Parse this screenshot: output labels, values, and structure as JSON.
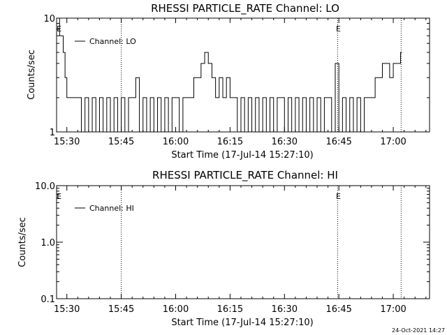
{
  "footer": {
    "timestamp": "24-Oct-2021 14:27"
  },
  "chart_data": [
    {
      "type": "line",
      "title": "RHESSI PARTICLE_RATE Channel: LO",
      "xlabel": "Start Time (17-Jul-14 15:27:10)",
      "ylabel": "Counts/sec",
      "yscale": "log",
      "ylim": [
        1,
        10
      ],
      "xlim": [
        "15:27:10",
        "17:10:00"
      ],
      "xticks": [
        "15:30",
        "15:45",
        "16:00",
        "16:15",
        "16:30",
        "16:45",
        "17:00"
      ],
      "yticks": [
        "1",
        "10"
      ],
      "legend": {
        "label": "Channel: LO",
        "position": "top-left"
      },
      "markers": [
        {
          "label": "E",
          "time": "16:44:40"
        },
        {
          "label": "E",
          "time": "15:27:40"
        }
      ],
      "vlines": [
        "15:45:00",
        "16:44:40",
        "17:02:10"
      ],
      "series": [
        {
          "name": "Channel: LO",
          "x": [
            "15:27:10",
            "15:28:00",
            "15:29:00",
            "15:29:30",
            "15:30:00",
            "15:31:00",
            "15:32:00",
            "15:33:00",
            "15:34:00",
            "15:35:00",
            "15:36:00",
            "15:37:00",
            "15:38:00",
            "15:39:00",
            "15:40:00",
            "15:41:00",
            "15:42:00",
            "15:43:00",
            "15:44:00",
            "15:45:00",
            "15:46:00",
            "15:47:00",
            "15:48:00",
            "15:49:00",
            "15:50:00",
            "15:51:00",
            "15:52:00",
            "15:53:00",
            "15:54:00",
            "15:55:00",
            "15:56:00",
            "15:57:00",
            "15:58:00",
            "15:59:00",
            "16:00:00",
            "16:01:00",
            "16:02:00",
            "16:03:00",
            "16:04:00",
            "16:05:00",
            "16:06:00",
            "16:07:00",
            "16:08:00",
            "16:09:00",
            "16:10:00",
            "16:11:00",
            "16:12:00",
            "16:13:00",
            "16:14:00",
            "16:15:00",
            "16:16:00",
            "16:17:00",
            "16:18:00",
            "16:19:00",
            "16:20:00",
            "16:21:00",
            "16:22:00",
            "16:23:00",
            "16:24:00",
            "16:25:00",
            "16:26:00",
            "16:27:00",
            "16:28:00",
            "16:29:00",
            "16:30:00",
            "16:31:00",
            "16:32:00",
            "16:33:00",
            "16:34:00",
            "16:35:00",
            "16:36:00",
            "16:37:00",
            "16:38:00",
            "16:39:00",
            "16:40:00",
            "16:41:00",
            "16:42:00",
            "16:43:00",
            "16:44:00",
            "16:45:00",
            "16:46:00",
            "16:47:00",
            "16:48:00",
            "16:49:00",
            "16:50:00",
            "16:51:00",
            "16:52:00",
            "16:53:00",
            "16:54:00",
            "16:55:00",
            "16:56:00",
            "16:57:00",
            "16:58:00",
            "16:59:00",
            "17:00:00",
            "17:01:00",
            "17:02:00"
          ],
          "y": [
            10,
            7,
            5,
            3,
            2,
            2,
            2,
            2,
            1,
            2,
            1,
            2,
            1,
            2,
            1,
            2,
            1,
            2,
            1,
            2,
            1,
            2,
            2,
            3,
            1,
            2,
            1,
            2,
            1,
            2,
            1,
            2,
            1,
            2,
            2,
            1,
            2,
            2,
            2,
            3,
            3,
            4,
            5,
            4,
            3,
            2,
            3,
            2,
            3,
            2,
            2,
            1,
            2,
            1,
            2,
            1,
            2,
            1,
            2,
            1,
            2,
            1,
            2,
            2,
            1,
            2,
            1,
            2,
            1,
            2,
            1,
            2,
            1,
            2,
            1,
            2,
            2,
            1,
            4,
            1,
            2,
            1,
            2,
            1,
            2,
            1,
            2,
            2,
            2,
            3,
            3,
            4,
            4,
            3,
            4,
            4,
            5
          ],
          "color": "#000000"
        }
      ]
    },
    {
      "type": "line",
      "title": "RHESSI PARTICLE_RATE Channel: HI",
      "xlabel": "Start Time (17-Jul-14 15:27:10)",
      "ylabel": "Counts/sec",
      "yscale": "log",
      "ylim": [
        0.1,
        10
      ],
      "xlim": [
        "15:27:10",
        "17:10:00"
      ],
      "xticks": [
        "15:30",
        "15:45",
        "16:00",
        "16:15",
        "16:30",
        "16:45",
        "17:00"
      ],
      "yticks": [
        "0.1",
        "1.0",
        "10.0"
      ],
      "legend": {
        "label": "Channel: HI",
        "position": "top-left"
      },
      "markers": [
        {
          "label": "E",
          "time": "16:44:40"
        },
        {
          "label": "E",
          "time": "15:27:40"
        }
      ],
      "vlines": [
        "15:45:00",
        "16:44:40",
        "17:02:10"
      ],
      "series": [
        {
          "name": "Channel: HI",
          "x": [],
          "y": [],
          "color": "#000000"
        }
      ]
    }
  ]
}
